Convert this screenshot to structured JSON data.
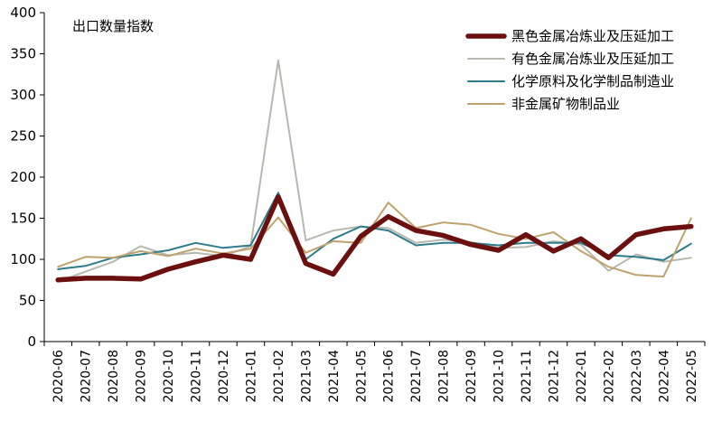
{
  "chart_data": {
    "type": "line",
    "title": "出口数量指数",
    "xlabel": "",
    "ylabel": "",
    "ylim": [
      0,
      400
    ],
    "yticks": [
      "0",
      "50",
      "100",
      "150",
      "200",
      "250",
      "300",
      "350",
      "400"
    ],
    "grid": false,
    "legend_position": "top-right",
    "categories": [
      "2020-06",
      "2020-07",
      "2020-08",
      "2020-09",
      "2020-10",
      "2020-11",
      "2020-12",
      "2021-01",
      "2021-02",
      "2021-03",
      "2021-04",
      "2021-05",
      "2021-06",
      "2021-07",
      "2021-08",
      "2021-09",
      "2021-10",
      "2021-11",
      "2021-12",
      "2022-01",
      "2022-02",
      "2022-03",
      "2022-04",
      "2022-05"
    ],
    "series": [
      {
        "name": "黑色金属冶炼业及压延加工",
        "color": "#6b0f0f",
        "width": 5.5,
        "values": [
          75,
          77,
          77,
          76,
          88,
          97,
          105,
          100,
          176,
          95,
          82,
          128,
          152,
          135,
          129,
          118,
          111,
          130,
          110,
          125,
          102,
          130,
          137,
          140
        ]
      },
      {
        "name": "有色金属冶炼业及压延加工",
        "color": "#b8b8b0",
        "width": 2,
        "values": [
          73,
          85,
          97,
          116,
          105,
          108,
          104,
          116,
          342,
          123,
          135,
          140,
          138,
          120,
          124,
          121,
          114,
          115,
          122,
          118,
          86,
          106,
          97,
          102
        ]
      },
      {
        "name": "化学原料及化学制品制造业",
        "color": "#2e7b8c",
        "width": 2,
        "values": [
          88,
          92,
          102,
          106,
          111,
          120,
          114,
          117,
          181,
          100,
          125,
          140,
          135,
          117,
          120,
          120,
          117,
          120,
          120,
          120,
          105,
          103,
          99,
          119
        ]
      },
      {
        "name": "非金属矿物制品业",
        "color": "#bfa26e",
        "width": 2,
        "values": [
          91,
          103,
          102,
          110,
          104,
          113,
          107,
          113,
          151,
          108,
          122,
          120,
          169,
          138,
          145,
          142,
          131,
          125,
          133,
          110,
          91,
          81,
          79,
          150
        ]
      }
    ]
  }
}
